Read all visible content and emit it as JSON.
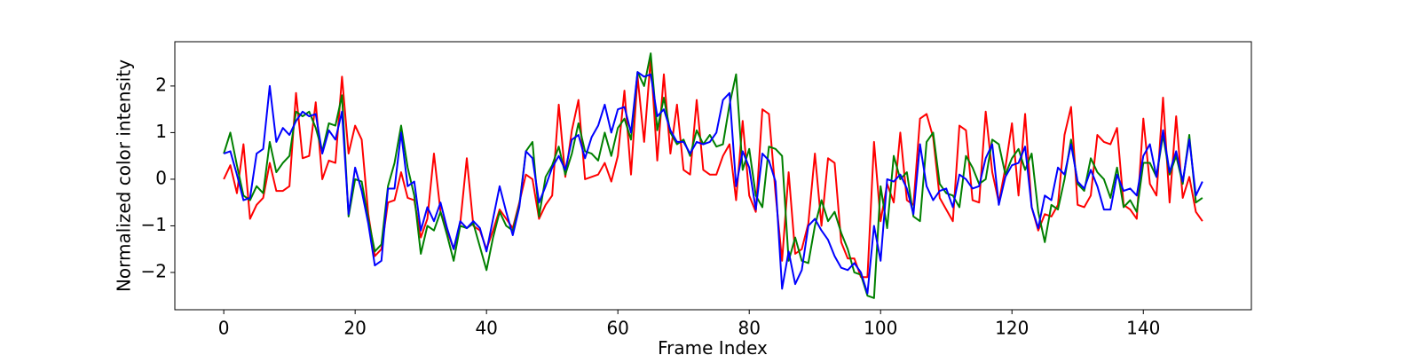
{
  "chart_data": {
    "type": "line",
    "xlabel": "Frame Index",
    "ylabel": "Normalized color intensity",
    "x": [
      0,
      1,
      2,
      3,
      4,
      5,
      6,
      7,
      8,
      9,
      10,
      11,
      12,
      13,
      14,
      15,
      16,
      17,
      18,
      19,
      20,
      21,
      22,
      23,
      24,
      25,
      26,
      27,
      28,
      29,
      30,
      31,
      32,
      33,
      34,
      35,
      36,
      37,
      38,
      39,
      40,
      41,
      42,
      43,
      44,
      45,
      46,
      47,
      48,
      49,
      50,
      51,
      52,
      53,
      54,
      55,
      56,
      57,
      58,
      59,
      60,
      61,
      62,
      63,
      64,
      65,
      66,
      67,
      68,
      69,
      70,
      71,
      72,
      73,
      74,
      75,
      76,
      77,
      78,
      79,
      80,
      81,
      82,
      83,
      84,
      85,
      86,
      87,
      88,
      89,
      90,
      91,
      92,
      93,
      94,
      95,
      96,
      97,
      98,
      99,
      100,
      101,
      102,
      103,
      104,
      105,
      106,
      107,
      108,
      109,
      110,
      111,
      112,
      113,
      114,
      115,
      116,
      117,
      118,
      119,
      120,
      121,
      122,
      123,
      124,
      125,
      126,
      127,
      128,
      129,
      130,
      131,
      132,
      133,
      134,
      135,
      136,
      137,
      138,
      139,
      140,
      141,
      142,
      143,
      144,
      145,
      146,
      147,
      148,
      149
    ],
    "series": [
      {
        "color": "#ff0000",
        "values": [
          0,
          0.3,
          -0.3,
          0.75,
          -0.85,
          -0.55,
          -0.4,
          0.35,
          -0.25,
          -0.25,
          -0.15,
          1.85,
          0.45,
          0.5,
          1.65,
          0,
          0.4,
          0.35,
          2.2,
          0.55,
          1.15,
          0.85,
          -0.75,
          -1.65,
          -1.5,
          -0.5,
          -0.45,
          0.15,
          -0.4,
          -0.45,
          -1.25,
          -0.85,
          0.55,
          -0.7,
          -1.1,
          -1.5,
          -0.95,
          0.45,
          -1.0,
          -1.1,
          -1.5,
          -1.1,
          -0.65,
          -0.85,
          -1.05,
          -0.5,
          0.1,
          0.0,
          -0.85,
          -0.55,
          -0.35,
          1.6,
          0.05,
          1.05,
          1.7,
          0.0,
          0.05,
          0.1,
          0.35,
          -0.05,
          0.5,
          1.9,
          0.1,
          2.2,
          0.8,
          2.6,
          0.4,
          2.25,
          0.55,
          1.6,
          0.2,
          0.1,
          1.7,
          0.2,
          0.1,
          0.1,
          0.5,
          0.75,
          -0.45,
          1.25,
          -0.35,
          -0.7,
          1.5,
          1.4,
          -0.3,
          -1.75,
          0.15,
          -1.6,
          -1.5,
          -0.95,
          0.55,
          -1.0,
          0.45,
          0.35,
          -1.35,
          -1.7,
          -1.7,
          -2.1,
          -2.1,
          0.8,
          -0.9,
          -0.1,
          -0.5,
          1.0,
          -0.45,
          -0.55,
          1.3,
          1.4,
          0.9,
          -0.4,
          -0.65,
          -0.9,
          1.15,
          1.05,
          -0.45,
          -0.5,
          1.45,
          0.15,
          -0.5,
          0.25,
          1.2,
          -0.35,
          1.4,
          -0.6,
          -1.1,
          -0.75,
          -0.8,
          -0.55,
          0.95,
          1.55,
          -0.55,
          -0.6,
          -0.35,
          0.95,
          0.8,
          0.75,
          1.1,
          -0.55,
          -0.65,
          -0.85,
          1.3,
          -0.1,
          -0.35,
          1.75,
          -0.5,
          1.35,
          -0.4,
          0.05,
          -0.7,
          -0.9
        ]
      },
      {
        "color": "#008000",
        "values": [
          0.55,
          1.0,
          0.3,
          -0.35,
          -0.45,
          -0.15,
          -0.3,
          0.8,
          0.15,
          0.35,
          0.5,
          1.45,
          1.35,
          1.45,
          1.1,
          0.6,
          1.2,
          1.15,
          1.8,
          -0.8,
          0.0,
          -0.05,
          -0.85,
          -1.55,
          -1.4,
          -0.15,
          0.35,
          1.15,
          0.25,
          -0.35,
          -1.6,
          -1.0,
          -1.1,
          -0.7,
          -1.2,
          -1.75,
          -1.0,
          -1.05,
          -0.95,
          -1.45,
          -1.95,
          -1.25,
          -0.7,
          -1.0,
          -1.1,
          -0.55,
          0.6,
          0.8,
          -0.8,
          0.05,
          0.3,
          0.7,
          0.1,
          0.55,
          1.2,
          0.6,
          0.55,
          0.4,
          1.0,
          0.5,
          1.1,
          1.3,
          0.85,
          2.3,
          2.0,
          2.7,
          1.05,
          1.75,
          1.0,
          0.75,
          0.85,
          0.5,
          1.05,
          0.75,
          0.95,
          0.7,
          0.75,
          1.6,
          2.25,
          0.2,
          0.65,
          -0.35,
          -0.6,
          0.7,
          0.65,
          0.5,
          -1.75,
          -1.25,
          -1.75,
          -1.8,
          -1.0,
          -0.45,
          -0.9,
          -0.7,
          -1.15,
          -1.5,
          -2.0,
          -2.05,
          -2.5,
          -2.55,
          -0.15,
          -1.05,
          0.5,
          0.0,
          0.15,
          -0.8,
          -0.9,
          0.8,
          1.0,
          -0.1,
          -0.3,
          -0.35,
          -0.6,
          0.5,
          0.25,
          -0.1,
          0.0,
          0.85,
          0.75,
          0.1,
          0.45,
          0.65,
          0.2,
          0.55,
          -0.7,
          -1.35,
          -0.55,
          -0.65,
          0.0,
          0.85,
          -0.1,
          -0.25,
          0.45,
          0.15,
          0.0,
          -0.4,
          0.25,
          -0.6,
          -0.45,
          -0.7,
          0.35,
          0.35,
          0.05,
          0.95,
          0.1,
          0.5,
          -0.1,
          0.95,
          -0.5,
          -0.4
        ]
      },
      {
        "color": "#0000ff",
        "values": [
          0.55,
          0.6,
          0.1,
          -0.45,
          -0.4,
          0.55,
          0.65,
          2.0,
          0.8,
          1.1,
          0.95,
          1.25,
          1.45,
          1.35,
          1.4,
          0.55,
          1.05,
          0.85,
          1.45,
          -0.75,
          0.25,
          -0.25,
          -0.95,
          -1.85,
          -1.75,
          -0.2,
          -0.2,
          1.0,
          -0.15,
          -0.05,
          -1.1,
          -0.6,
          -0.9,
          -0.5,
          -1.05,
          -1.5,
          -0.9,
          -1.05,
          -0.9,
          -1.05,
          -1.55,
          -0.85,
          -0.15,
          -0.7,
          -1.2,
          -0.6,
          0.6,
          0.45,
          -0.5,
          -0.15,
          0.25,
          0.5,
          0.2,
          0.85,
          0.95,
          0.45,
          0.9,
          1.15,
          1.6,
          1.0,
          1.5,
          1.55,
          1.0,
          2.3,
          2.2,
          2.25,
          1.35,
          1.5,
          1.05,
          0.8,
          0.8,
          0.55,
          0.8,
          0.75,
          0.8,
          1.0,
          1.7,
          1.85,
          -0.15,
          0.6,
          0.25,
          -0.65,
          0.55,
          0.4,
          -0.05,
          -2.35,
          -1.55,
          -2.25,
          -1.95,
          -1.0,
          -0.85,
          -1.1,
          -1.3,
          -1.65,
          -1.9,
          -1.95,
          -1.8,
          -2.0,
          -2.45,
          -1.0,
          -1.75,
          0.0,
          -0.05,
          0.1,
          -0.2,
          -0.75,
          0.75,
          -0.15,
          -0.45,
          -0.25,
          -0.2,
          -0.6,
          0.1,
          0.0,
          -0.2,
          -0.15,
          0.45,
          0.75,
          -0.55,
          0.05,
          0.3,
          0.35,
          0.7,
          -0.6,
          -1.05,
          -0.35,
          -0.45,
          0.25,
          0.1,
          0.75,
          -0.05,
          -0.2,
          0.2,
          -0.15,
          -0.65,
          -0.65,
          0.1,
          -0.25,
          -0.2,
          -0.35,
          0.5,
          0.75,
          0.05,
          1.05,
          0.15,
          0.6,
          -0.05,
          0.85,
          -0.35,
          -0.05
        ]
      }
    ],
    "xlim": [
      -7.45,
      156.45
    ],
    "xticks": [
      0,
      20,
      40,
      60,
      80,
      100,
      120,
      140
    ],
    "ylim": [
      -2.8,
      2.95
    ],
    "yticks": [
      {
        "value": -2,
        "label": "−2"
      },
      {
        "value": -1,
        "label": "−1"
      },
      0,
      1,
      2
    ],
    "grid": false
  }
}
